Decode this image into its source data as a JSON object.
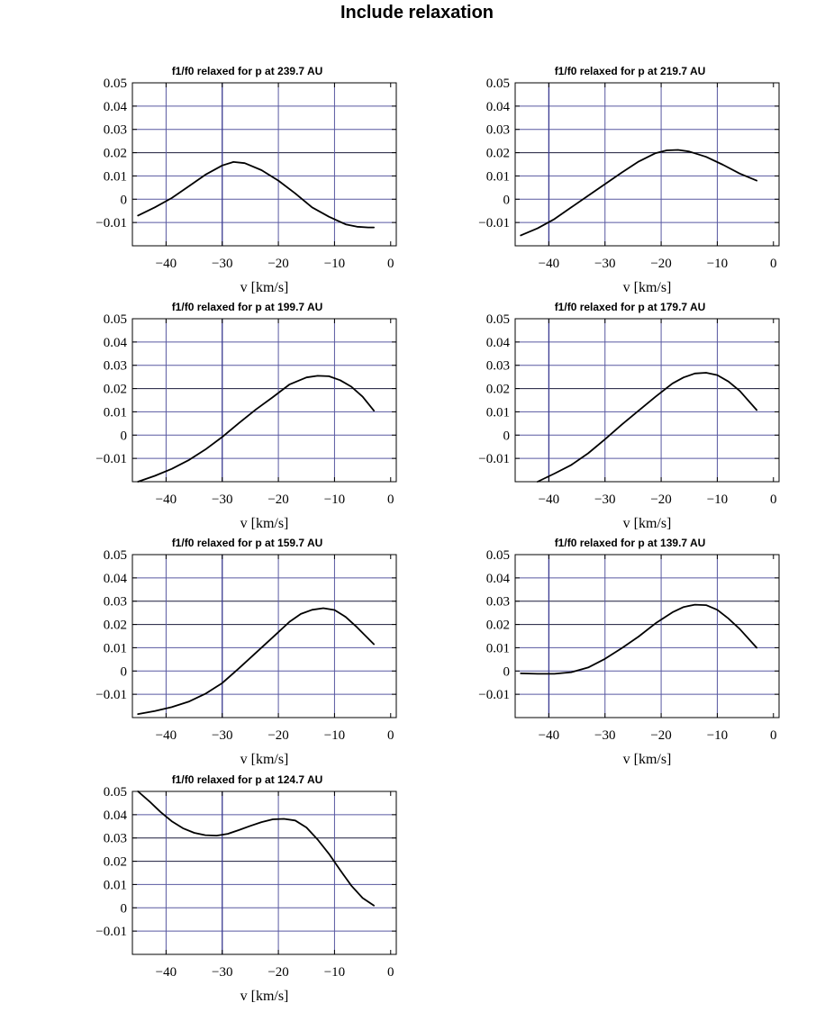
{
  "figure_title": "Include relaxation",
  "colors": {
    "grid": "#5858a0",
    "curve": "#000000",
    "frame": "#000000"
  },
  "chart_data": [
    {
      "type": "line",
      "title": "f1/f0 relaxed for p at 239.7 AU",
      "xlabel": "v [km/s]",
      "ylabel": "",
      "xlim": [
        -46,
        1
      ],
      "ylim": [
        -0.02,
        0.05
      ],
      "xticks": [
        -40,
        -30,
        -20,
        -10,
        0
      ],
      "xtick_labels": [
        "−40",
        "−30",
        "−20",
        "−10",
        "0"
      ],
      "yticks": [
        0.05,
        0.04,
        0.03,
        0.02,
        0.01,
        0,
        -0.01
      ],
      "ytick_labels": [
        "0.05",
        "0.04",
        "0.03",
        "0.02",
        "0.01",
        "0",
        "−0.01"
      ],
      "hgrid": [
        0.04,
        0.03,
        0.02,
        0.01,
        0,
        -0.01
      ],
      "hgrid_dark": [
        0.02
      ],
      "vgrid": [
        -40,
        -30,
        -20,
        -10
      ],
      "vgrid_dark": [
        -30
      ],
      "series": [
        {
          "name": "f1/f0",
          "x": [
            -45,
            -42,
            -39,
            -36,
            -33,
            -30,
            -28,
            -26,
            -23,
            -20,
            -17,
            -14,
            -11,
            -8,
            -6,
            -4,
            -3
          ],
          "y": [
            -0.007,
            -0.0035,
            0.0005,
            0.0055,
            0.0105,
            0.0145,
            0.016,
            0.0155,
            0.0125,
            0.008,
            0.0025,
            -0.0035,
            -0.0075,
            -0.0108,
            -0.0118,
            -0.0121,
            -0.0121
          ]
        }
      ]
    },
    {
      "type": "line",
      "title": "f1/f0 relaxed for p at 219.7 AU",
      "xlabel": "v [km/s]",
      "ylabel": "",
      "xlim": [
        -46,
        1
      ],
      "ylim": [
        -0.02,
        0.05
      ],
      "xticks": [
        -40,
        -30,
        -20,
        -10,
        0
      ],
      "xtick_labels": [
        "−40",
        "−30",
        "−20",
        "−10",
        "0"
      ],
      "yticks": [
        0.05,
        0.04,
        0.03,
        0.02,
        0.01,
        0,
        -0.01
      ],
      "ytick_labels": [
        "0.05",
        "0.04",
        "0.03",
        "0.02",
        "0.01",
        "0",
        "−0.01"
      ],
      "hgrid": [
        0.04,
        0.03,
        0.02,
        0.01,
        0,
        -0.01
      ],
      "hgrid_dark": [
        0.02
      ],
      "vgrid": [
        -40,
        -30,
        -20,
        -10
      ],
      "vgrid_dark": [
        -40
      ],
      "series": [
        {
          "name": "f1/f0",
          "x": [
            -45,
            -42,
            -39,
            -36,
            -33,
            -30,
            -27,
            -24,
            -21,
            -19,
            -17,
            -15,
            -12,
            -9,
            -6,
            -3
          ],
          "y": [
            -0.0155,
            -0.0125,
            -0.0085,
            -0.0035,
            0.0015,
            0.0065,
            0.0115,
            0.0162,
            0.0198,
            0.021,
            0.0212,
            0.0205,
            0.0182,
            0.0148,
            0.011,
            0.008
          ]
        }
      ]
    },
    {
      "type": "line",
      "title": "f1/f0 relaxed for p at 199.7 AU",
      "xlabel": "v [km/s]",
      "ylabel": "",
      "xlim": [
        -46,
        1
      ],
      "ylim": [
        -0.02,
        0.05
      ],
      "xticks": [
        -40,
        -30,
        -20,
        -10,
        0
      ],
      "xtick_labels": [
        "−40",
        "−30",
        "−20",
        "−10",
        "0"
      ],
      "yticks": [
        0.05,
        0.04,
        0.03,
        0.02,
        0.01,
        0,
        -0.01
      ],
      "ytick_labels": [
        "0.05",
        "0.04",
        "0.03",
        "0.02",
        "0.01",
        "0",
        "−0.01"
      ],
      "hgrid": [
        0.04,
        0.03,
        0.02,
        0.01,
        0,
        -0.01
      ],
      "hgrid_dark": [
        0.02
      ],
      "vgrid": [
        -40,
        -30,
        -20,
        -10
      ],
      "vgrid_dark": [
        -30
      ],
      "series": [
        {
          "name": "f1/f0",
          "x": [
            -45,
            -42,
            -39,
            -36,
            -33,
            -30,
            -27,
            -24,
            -21,
            -18,
            -15,
            -13,
            -11,
            -9,
            -7,
            -5,
            -3
          ],
          "y": [
            -0.02,
            -0.0175,
            -0.0145,
            -0.0108,
            -0.0062,
            -0.0008,
            0.0052,
            0.011,
            0.0163,
            0.0218,
            0.0248,
            0.0255,
            0.0253,
            0.0236,
            0.0208,
            0.0165,
            0.0105
          ]
        }
      ]
    },
    {
      "type": "line",
      "title": "f1/f0 relaxed for p at 179.7 AU",
      "xlabel": "v [km/s]",
      "ylabel": "",
      "xlim": [
        -46,
        1
      ],
      "ylim": [
        -0.02,
        0.05
      ],
      "xticks": [
        -40,
        -30,
        -20,
        -10,
        0
      ],
      "xtick_labels": [
        "−40",
        "−30",
        "−20",
        "−10",
        "0"
      ],
      "yticks": [
        0.05,
        0.04,
        0.03,
        0.02,
        0.01,
        0,
        -0.01
      ],
      "ytick_labels": [
        "0.05",
        "0.04",
        "0.03",
        "0.02",
        "0.01",
        "0",
        "−0.01"
      ],
      "hgrid": [
        0.04,
        0.03,
        0.02,
        0.01,
        0,
        -0.01
      ],
      "hgrid_dark": [
        0.02
      ],
      "vgrid": [
        -40,
        -30,
        -20,
        -10
      ],
      "vgrid_dark": [
        -40
      ],
      "series": [
        {
          "name": "f1/f0",
          "x": [
            -42,
            -39,
            -36,
            -33,
            -30,
            -27,
            -24,
            -21,
            -18,
            -16,
            -14,
            -12,
            -10,
            -8,
            -6,
            -3
          ],
          "y": [
            -0.02,
            -0.0165,
            -0.0128,
            -0.0078,
            -0.0018,
            0.0045,
            0.0105,
            0.0165,
            0.0222,
            0.0248,
            0.0265,
            0.0268,
            0.0258,
            0.023,
            0.019,
            0.0108
          ]
        }
      ]
    },
    {
      "type": "line",
      "title": "f1/f0 relaxed for p at 159.7 AU",
      "xlabel": "v [km/s]",
      "ylabel": "",
      "xlim": [
        -46,
        1
      ],
      "ylim": [
        -0.02,
        0.05
      ],
      "xticks": [
        -40,
        -30,
        -20,
        -10,
        0
      ],
      "xtick_labels": [
        "−40",
        "−30",
        "−20",
        "−10",
        "0"
      ],
      "yticks": [
        0.05,
        0.04,
        0.03,
        0.02,
        0.01,
        0,
        -0.01
      ],
      "ytick_labels": [
        "0.05",
        "0.04",
        "0.03",
        "0.02",
        "0.01",
        "0",
        "−0.01"
      ],
      "hgrid": [
        0.04,
        0.03,
        0.02,
        0.01,
        0,
        -0.01
      ],
      "hgrid_dark": [
        0.03,
        0.02
      ],
      "vgrid": [
        -40,
        -30,
        -20,
        -10
      ],
      "vgrid_dark": [
        -30
      ],
      "series": [
        {
          "name": "f1/f0",
          "x": [
            -45,
            -42,
            -39,
            -36,
            -33,
            -30,
            -27,
            -24,
            -21,
            -18,
            -16,
            -14,
            -12,
            -10,
            -8,
            -6,
            -3
          ],
          "y": [
            -0.0185,
            -0.0172,
            -0.0155,
            -0.0132,
            -0.0098,
            -0.0052,
            0.0012,
            0.0078,
            0.0145,
            0.0212,
            0.0245,
            0.0263,
            0.027,
            0.0262,
            0.0232,
            0.0188,
            0.0115
          ]
        }
      ]
    },
    {
      "type": "line",
      "title": "f1/f0 relaxed for p at 139.7 AU",
      "xlabel": "v [km/s]",
      "ylabel": "",
      "xlim": [
        -46,
        1
      ],
      "ylim": [
        -0.02,
        0.05
      ],
      "xticks": [
        -40,
        -30,
        -20,
        -10,
        0
      ],
      "xtick_labels": [
        "−40",
        "−30",
        "−20",
        "−10",
        "0"
      ],
      "yticks": [
        0.05,
        0.04,
        0.03,
        0.02,
        0.01,
        0,
        -0.01
      ],
      "ytick_labels": [
        "0.05",
        "0.04",
        "0.03",
        "0.02",
        "0.01",
        "0",
        "−0.01"
      ],
      "hgrid": [
        0.04,
        0.03,
        0.02,
        0.01,
        0,
        -0.01
      ],
      "hgrid_dark": [
        0.03,
        0.02
      ],
      "vgrid": [
        -40,
        -30,
        -20,
        -10
      ],
      "vgrid_dark": [
        -40
      ],
      "series": [
        {
          "name": "f1/f0",
          "x": [
            -45,
            -42,
            -39,
            -36,
            -33,
            -30,
            -27,
            -24,
            -21,
            -18,
            -16,
            -14,
            -12,
            -10,
            -8,
            -6,
            -3
          ],
          "y": [
            -0.001,
            -0.0012,
            -0.0012,
            -0.0005,
            0.0015,
            0.0052,
            0.0098,
            0.0148,
            0.0205,
            0.0252,
            0.0275,
            0.0285,
            0.0283,
            0.0263,
            0.0225,
            0.018,
            0.01
          ]
        }
      ]
    },
    {
      "type": "line",
      "title": "f1/f0 relaxed for p at 124.7 AU",
      "xlabel": "v [km/s]",
      "ylabel": "",
      "xlim": [
        -46,
        1
      ],
      "ylim": [
        -0.02,
        0.05
      ],
      "xticks": [
        -40,
        -30,
        -20,
        -10,
        0
      ],
      "xtick_labels": [
        "−40",
        "−30",
        "−20",
        "−10",
        "0"
      ],
      "yticks": [
        0.05,
        0.04,
        0.03,
        0.02,
        0.01,
        0,
        -0.01
      ],
      "ytick_labels": [
        "0.05",
        "0.04",
        "0.03",
        "0.02",
        "0.01",
        "0",
        "−0.01"
      ],
      "hgrid": [
        0.04,
        0.03,
        0.02,
        0.01,
        0,
        -0.01
      ],
      "hgrid_dark": [
        0.03,
        0.02
      ],
      "vgrid": [
        -40,
        -30,
        -20,
        -10
      ],
      "vgrid_dark": [
        -30
      ],
      "series": [
        {
          "name": "f1/f0",
          "x": [
            -45,
            -43,
            -41,
            -39,
            -37,
            -35,
            -33,
            -31,
            -29,
            -27,
            -25,
            -23,
            -21,
            -19,
            -17,
            -15,
            -13,
            -11,
            -9,
            -7,
            -5,
            -3
          ],
          "y": [
            0.05,
            0.0458,
            0.0412,
            0.0372,
            0.0342,
            0.0322,
            0.0312,
            0.031,
            0.0318,
            0.0334,
            0.0352,
            0.0368,
            0.038,
            0.0382,
            0.0375,
            0.0345,
            0.0293,
            0.0232,
            0.0162,
            0.0095,
            0.0042,
            0.001
          ]
        }
      ]
    }
  ]
}
